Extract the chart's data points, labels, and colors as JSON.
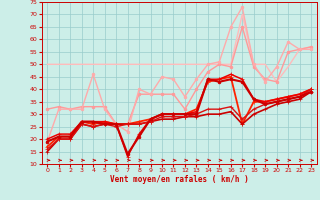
{
  "xlabel": "Vent moyen/en rafales ( km/h )",
  "xlim": [
    -0.5,
    23.5
  ],
  "ylim": [
    10,
    75
  ],
  "yticks": [
    10,
    15,
    20,
    25,
    30,
    35,
    40,
    45,
    50,
    55,
    60,
    65,
    70,
    75
  ],
  "xticks": [
    0,
    1,
    2,
    3,
    4,
    5,
    6,
    7,
    8,
    9,
    10,
    11,
    12,
    13,
    14,
    15,
    16,
    17,
    18,
    19,
    20,
    21,
    22,
    23
  ],
  "bg_color": "#cceee8",
  "grid_color": "#99cccc",
  "series": [
    {
      "x": [
        0,
        1,
        2,
        3,
        4,
        5,
        6,
        7,
        8,
        9,
        10,
        11,
        12,
        13,
        14,
        15,
        16,
        17,
        18,
        19,
        20,
        21,
        22,
        23
      ],
      "y": [
        15,
        20,
        20,
        26,
        25,
        26,
        26,
        26,
        26,
        27,
        28,
        28,
        29,
        29,
        30,
        30,
        31,
        26,
        30,
        32,
        34,
        35,
        36,
        39
      ],
      "color": "#cc0000",
      "lw": 1.2,
      "marker": "+",
      "ms": 3,
      "zorder": 5
    },
    {
      "x": [
        0,
        1,
        2,
        3,
        4,
        5,
        6,
        7,
        8,
        9,
        10,
        11,
        12,
        13,
        14,
        15,
        16,
        17,
        18,
        19,
        20,
        21,
        22,
        23
      ],
      "y": [
        16,
        20,
        20,
        26,
        25,
        26,
        25,
        26,
        26,
        27,
        29,
        29,
        29,
        30,
        32,
        32,
        33,
        28,
        32,
        34,
        35,
        36,
        37,
        40
      ],
      "color": "#dd1111",
      "lw": 1.0,
      "marker": "+",
      "ms": 3,
      "zorder": 5
    },
    {
      "x": [
        0,
        1,
        2,
        3,
        4,
        5,
        6,
        7,
        8,
        9,
        10,
        11,
        12,
        13,
        14,
        15,
        16,
        17,
        18,
        19,
        20,
        21,
        22,
        23
      ],
      "y": [
        17,
        21,
        21,
        27,
        26,
        27,
        26,
        26,
        27,
        28,
        30,
        30,
        30,
        32,
        43,
        44,
        45,
        26,
        35,
        35,
        36,
        37,
        38,
        40
      ],
      "color": "#ff2200",
      "lw": 1.3,
      "marker": "+",
      "ms": 3,
      "zorder": 4
    },
    {
      "x": [
        0,
        1,
        2,
        3,
        4,
        5,
        6,
        7,
        8,
        9,
        10,
        11,
        12,
        13,
        14,
        15,
        16,
        17,
        18,
        19,
        20,
        21,
        22,
        23
      ],
      "y": [
        20,
        22,
        22,
        27,
        27,
        27,
        26,
        13,
        22,
        28,
        30,
        30,
        30,
        31,
        44,
        44,
        46,
        44,
        36,
        35,
        36,
        37,
        38,
        40
      ],
      "color": "#ee0000",
      "lw": 1.1,
      "marker": "+",
      "ms": 3,
      "zorder": 4
    },
    {
      "x": [
        0,
        1,
        2,
        3,
        4,
        5,
        6,
        7,
        8,
        9,
        10,
        11,
        12,
        13,
        14,
        15,
        16,
        17,
        18,
        19,
        20,
        21,
        22,
        23
      ],
      "y": [
        19,
        21,
        21,
        27,
        27,
        26,
        26,
        14,
        21,
        28,
        30,
        30,
        30,
        30,
        44,
        43,
        44,
        43,
        36,
        34,
        35,
        36,
        37,
        39
      ],
      "color": "#cc0000",
      "lw": 1.5,
      "marker": ".",
      "ms": 4,
      "zorder": 5
    },
    {
      "x": [
        0,
        1,
        2,
        3,
        4,
        5,
        6,
        7,
        8,
        9,
        10,
        11,
        12,
        13,
        14,
        15,
        16,
        17,
        18,
        19,
        20,
        21,
        22,
        23
      ],
      "y": [
        50,
        50,
        50,
        50,
        50,
        50,
        50,
        50,
        50,
        50,
        50,
        50,
        50,
        50,
        50,
        50,
        50,
        70,
        50,
        50,
        43,
        49,
        56,
        57
      ],
      "color": "#ffbbbb",
      "lw": 1.0,
      "marker": null,
      "ms": 0,
      "zorder": 2
    },
    {
      "x": [
        0,
        1,
        2,
        3,
        4,
        5,
        6,
        7,
        8,
        9,
        10,
        11,
        12,
        13,
        14,
        15,
        16,
        17,
        18,
        19,
        20,
        21,
        22,
        23
      ],
      "y": [
        32,
        33,
        32,
        33,
        33,
        33,
        26,
        26,
        38,
        38,
        38,
        38,
        32,
        40,
        47,
        50,
        49,
        65,
        49,
        44,
        43,
        55,
        56,
        57
      ],
      "color": "#ff9999",
      "lw": 1.0,
      "marker": ".",
      "ms": 4,
      "zorder": 3
    },
    {
      "x": [
        0,
        1,
        2,
        3,
        4,
        5,
        6,
        7,
        8,
        9,
        10,
        11,
        12,
        13,
        14,
        15,
        16,
        17,
        18,
        19,
        20,
        21,
        22,
        23
      ],
      "y": [
        19,
        32,
        32,
        32,
        46,
        32,
        26,
        23,
        40,
        38,
        45,
        44,
        37,
        44,
        50,
        51,
        65,
        73,
        50,
        43,
        49,
        59,
        56,
        56
      ],
      "color": "#ffaaaa",
      "lw": 1.0,
      "marker": ".",
      "ms": 4,
      "zorder": 3
    }
  ]
}
